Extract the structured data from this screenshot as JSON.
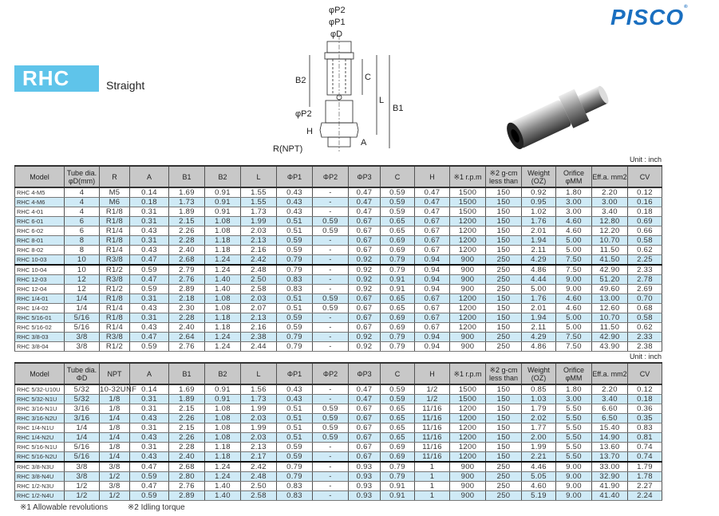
{
  "brand": "PISCO",
  "series": "RHC",
  "subtitle": "Straight",
  "diagram_labels": {
    "p2_top": "φP2",
    "p1": "φP1",
    "d": "φD",
    "b2": "B2",
    "c": "C",
    "l": "L",
    "b1": "B1",
    "p2": "φP2",
    "h": "H",
    "a": "A",
    "r": "R(NPT)"
  },
  "unit": "Unit : inch",
  "table1": {
    "headers": [
      "Model",
      "Tube dia. φD(mm)",
      "R",
      "A",
      "B1",
      "B2",
      "L",
      "ΦP1",
      "ΦP2",
      "ΦP3",
      "C",
      "H",
      "※1 r.p.m",
      "※2 g-cm less than",
      "Weight (OZ)",
      "Orifice φMM",
      "Eff.a. mm2",
      "CV"
    ],
    "rows": [
      [
        "RHC 4-M5",
        "4",
        "M5",
        "0.14",
        "1.69",
        "0.91",
        "1.55",
        "0.43",
        "-",
        "0.47",
        "0.59",
        "0.47",
        "1500",
        "150",
        "0.92",
        "1.80",
        "2.20",
        "0.12"
      ],
      [
        "RHC 4-M6",
        "4",
        "M6",
        "0.18",
        "1.73",
        "0.91",
        "1.55",
        "0.43",
        "-",
        "0.47",
        "0.59",
        "0.47",
        "1500",
        "150",
        "0.95",
        "3.00",
        "3.00",
        "0.16"
      ],
      [
        "RHC 4-01",
        "4",
        "R1/8",
        "0.31",
        "1.89",
        "0.91",
        "1.73",
        "0.43",
        "-",
        "0.47",
        "0.59",
        "0.47",
        "1500",
        "150",
        "1.02",
        "3.00",
        "3.40",
        "0.18"
      ],
      [
        "RHC 6-01",
        "6",
        "R1/8",
        "0.31",
        "2.15",
        "1.08",
        "1.99",
        "0.51",
        "0.59",
        "0.67",
        "0.65",
        "0.67",
        "1200",
        "150",
        "1.76",
        "4.60",
        "12.80",
        "0.69"
      ],
      [
        "RHC 6-02",
        "6",
        "R1/4",
        "0.43",
        "2.26",
        "1.08",
        "2.03",
        "0.51",
        "0.59",
        "0.67",
        "0.65",
        "0.67",
        "1200",
        "150",
        "2.01",
        "4.60",
        "12.20",
        "0.66"
      ],
      [
        "RHC 8-01",
        "8",
        "R1/8",
        "0.31",
        "2.28",
        "1.18",
        "2.13",
        "0.59",
        "-",
        "0.67",
        "0.69",
        "0.67",
        "1200",
        "150",
        "1.94",
        "5.00",
        "10.70",
        "0.58"
      ],
      [
        "RHC 8-02",
        "8",
        "R1/4",
        "0.43",
        "2.40",
        "1.18",
        "2.16",
        "0.59",
        "-",
        "0.67",
        "0.69",
        "0.67",
        "1200",
        "150",
        "2.11",
        "5.00",
        "11.50",
        "0.62"
      ],
      [
        "RHC 10-03",
        "10",
        "R3/8",
        "0.47",
        "2.68",
        "1.24",
        "2.42",
        "0.79",
        "-",
        "0.92",
        "0.79",
        "0.94",
        "900",
        "250",
        "4.29",
        "7.50",
        "41.50",
        "2.25"
      ],
      [
        "RHC 10-04",
        "10",
        "R1/2",
        "0.59",
        "2.79",
        "1.24",
        "2.48",
        "0.79",
        "-",
        "0.92",
        "0.79",
        "0.94",
        "900",
        "250",
        "4.86",
        "7.50",
        "42.90",
        "2.33"
      ],
      [
        "RHC 12-03",
        "12",
        "R3/8",
        "0.47",
        "2.76",
        "1.40",
        "2.50",
        "0.83",
        "-",
        "0.92",
        "0.91",
        "0.94",
        "900",
        "250",
        "4.44",
        "9.00",
        "51.20",
        "2.78"
      ],
      [
        "RHC 12-04",
        "12",
        "R1/2",
        "0.59",
        "2.89",
        "1.40",
        "2.58",
        "0.83",
        "-",
        "0.92",
        "0.91",
        "0.94",
        "900",
        "250",
        "5.00",
        "9.00",
        "49.60",
        "2.69"
      ],
      [
        "RHC 1/4-01",
        "1/4",
        "R1/8",
        "0.31",
        "2.18",
        "1.08",
        "2.03",
        "0.51",
        "0.59",
        "0.67",
        "0.65",
        "0.67",
        "1200",
        "150",
        "1.76",
        "4.60",
        "13.00",
        "0.70"
      ],
      [
        "RHC 1/4-02",
        "1/4",
        "R1/4",
        "0.43",
        "2.30",
        "1.08",
        "2.07",
        "0.51",
        "0.59",
        "0.67",
        "0.65",
        "0.67",
        "1200",
        "150",
        "2.01",
        "4.60",
        "12.60",
        "0.68"
      ],
      [
        "RHC 5/16-01",
        "5/16",
        "R1/8",
        "0.31",
        "2.28",
        "1.18",
        "2.13",
        "0.59",
        "-",
        "0.67",
        "0.69",
        "0.67",
        "1200",
        "150",
        "1.94",
        "5.00",
        "10.70",
        "0.58"
      ],
      [
        "RHC 5/16-02",
        "5/16",
        "R1/4",
        "0.43",
        "2.40",
        "1.18",
        "2.16",
        "0.59",
        "-",
        "0.67",
        "0.69",
        "0.67",
        "1200",
        "150",
        "2.11",
        "5.00",
        "11.50",
        "0.62"
      ],
      [
        "RHC 3/8-03",
        "3/8",
        "R3/8",
        "0.47",
        "2.64",
        "1.24",
        "2.38",
        "0.79",
        "-",
        "0.92",
        "0.79",
        "0.94",
        "900",
        "250",
        "4.29",
        "7.50",
        "42.90",
        "2.33"
      ],
      [
        "RHC 3/8-04",
        "3/8",
        "R1/2",
        "0.59",
        "2.76",
        "1.24",
        "2.44",
        "0.79",
        "-",
        "0.92",
        "0.79",
        "0.94",
        "900",
        "250",
        "4.86",
        "7.50",
        "43.90",
        "2.38"
      ]
    ]
  },
  "table2": {
    "headers": [
      "Model",
      "Tube dia. ΦD",
      "NPT",
      "A",
      "B1",
      "B2",
      "L",
      "ΦP1",
      "ΦP2",
      "ΦP3",
      "C",
      "H",
      "※1 r.p.m",
      "※2 g-cm less than",
      "Weight (OZ)",
      "Orifice φMM",
      "Eff.a. mm2",
      "CV"
    ],
    "rows": [
      [
        "RHC 5/32-U10U",
        "5/32",
        "10-32UNF",
        "0.14",
        "1.69",
        "0.91",
        "1.56",
        "0.43",
        "-",
        "0.47",
        "0.59",
        "1/2",
        "1500",
        "150",
        "0.85",
        "1.80",
        "2.20",
        "0.12"
      ],
      [
        "RHC 5/32-N1U",
        "5/32",
        "1/8",
        "0.31",
        "1.89",
        "0.91",
        "1.73",
        "0.43",
        "-",
        "0.47",
        "0.59",
        "1/2",
        "1500",
        "150",
        "1.03",
        "3.00",
        "3.40",
        "0.18"
      ],
      [
        "RHC 3/16-N1U",
        "3/16",
        "1/8",
        "0.31",
        "2.15",
        "1.08",
        "1.99",
        "0.51",
        "0.59",
        "0.67",
        "0.65",
        "11/16",
        "1200",
        "150",
        "1.79",
        "5.50",
        "6.60",
        "0.36"
      ],
      [
        "RHC 3/16-N2U",
        "3/16",
        "1/4",
        "0.43",
        "2.26",
        "1.08",
        "2.03",
        "0.51",
        "0.59",
        "0.67",
        "0.65",
        "11/16",
        "1200",
        "150",
        "2.02",
        "5.50",
        "6.50",
        "0.35"
      ],
      [
        "RHC 1/4-N1U",
        "1/4",
        "1/8",
        "0.31",
        "2.15",
        "1.08",
        "1.99",
        "0.51",
        "0.59",
        "0.67",
        "0.65",
        "11/16",
        "1200",
        "150",
        "1.77",
        "5.50",
        "15.40",
        "0.83"
      ],
      [
        "RHC 1/4-N2U",
        "1/4",
        "1/4",
        "0.43",
        "2.26",
        "1.08",
        "2.03",
        "0.51",
        "0.59",
        "0.67",
        "0.65",
        "11/16",
        "1200",
        "150",
        "2.00",
        "5.50",
        "14.90",
        "0.81"
      ],
      [
        "RHC 5/16-N1U",
        "5/16",
        "1/8",
        "0.31",
        "2.28",
        "1.18",
        "2.13",
        "0.59",
        "-",
        "0.67",
        "0.69",
        "11/16",
        "1200",
        "150",
        "1.99",
        "5.50",
        "13.60",
        "0.74"
      ],
      [
        "RHC 5/16-N2U",
        "5/16",
        "1/4",
        "0.43",
        "2.40",
        "1.18",
        "2.17",
        "0.59",
        "-",
        "0.67",
        "0.69",
        "11/16",
        "1200",
        "150",
        "2.21",
        "5.50",
        "13.70",
        "0.74"
      ],
      [
        "RHC 3/8-N3U",
        "3/8",
        "3/8",
        "0.47",
        "2.68",
        "1.24",
        "2.42",
        "0.79",
        "-",
        "0.93",
        "0.79",
        "1",
        "900",
        "250",
        "4.46",
        "9.00",
        "33.00",
        "1.79"
      ],
      [
        "RHC 3/8-N4U",
        "3/8",
        "1/2",
        "0.59",
        "2.80",
        "1.24",
        "2.48",
        "0.79",
        "-",
        "0.93",
        "0.79",
        "1",
        "900",
        "250",
        "5.05",
        "9.00",
        "32.90",
        "1.78"
      ],
      [
        "RHC 1/2-N3U",
        "1/2",
        "3/8",
        "0.47",
        "2.76",
        "1.40",
        "2.50",
        "0.83",
        "-",
        "0.93",
        "0.91",
        "1",
        "900",
        "250",
        "4.60",
        "9.00",
        "41.90",
        "2.27"
      ],
      [
        "RHC 1/2-N4U",
        "1/2",
        "1/2",
        "0.59",
        "2.89",
        "1.40",
        "2.58",
        "0.83",
        "-",
        "0.93",
        "0.91",
        "1",
        "900",
        "250",
        "5.19",
        "9.00",
        "41.40",
        "2.24"
      ]
    ]
  },
  "footnotes": [
    "※1 Allowable revolutions",
    "※2 Idling torque"
  ]
}
